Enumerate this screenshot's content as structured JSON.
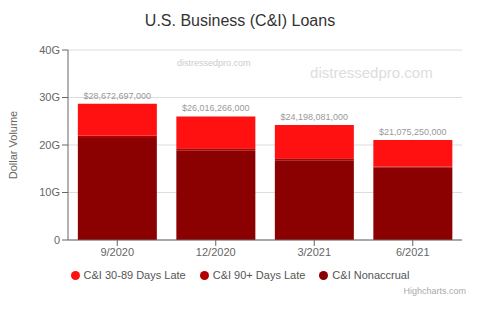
{
  "chart_data": {
    "type": "bar",
    "stacked": true,
    "title": "U.S. Business (C&I) Loans",
    "y_label": "Dollar Volume",
    "categories": [
      "9/2020",
      "12/2020",
      "3/2021",
      "6/2021"
    ],
    "series": [
      {
        "name": "C&I Nonaccrual",
        "color": "#8B0000",
        "values": [
          21500000000,
          18800000000,
          16800000000,
          15200000000
        ]
      },
      {
        "name": "C&I 90+ Days Late",
        "color": "#B20000",
        "values": [
          500000000,
          500000000,
          400000000,
          300000000
        ]
      },
      {
        "name": "C&I 30-89 Days Late",
        "color": "#FF1111",
        "values": [
          6672697000,
          6716266000,
          6998081000,
          5575250000
        ]
      }
    ],
    "ylim": [
      0,
      40000000000
    ],
    "yticks": [
      0,
      {
        "value": 10000000000,
        "label": "10G"
      },
      {
        "value": 20000000000,
        "label": "20G"
      },
      {
        "value": 30000000000,
        "label": "30G"
      },
      {
        "value": 40000000000,
        "label": "40G"
      }
    ],
    "grid": true,
    "legend": "bottom",
    "annotations": [
      {
        "text": "$28,672,697,000",
        "category": "9/2020",
        "value": 28672697000
      },
      {
        "text": "$26,016,266,000",
        "category": "12/2020",
        "value": 26016266000
      },
      {
        "text": "$24,198,081,000",
        "category": "3/2021",
        "value": 24198081000
      },
      {
        "text": "$21,075,250,000",
        "category": "6/2021",
        "value": 21075250000
      },
      {
        "text": "distressedpro.com"
      },
      {
        "text": "distressedpro.com"
      },
      {
        "text": "Highcharts.com"
      }
    ]
  }
}
